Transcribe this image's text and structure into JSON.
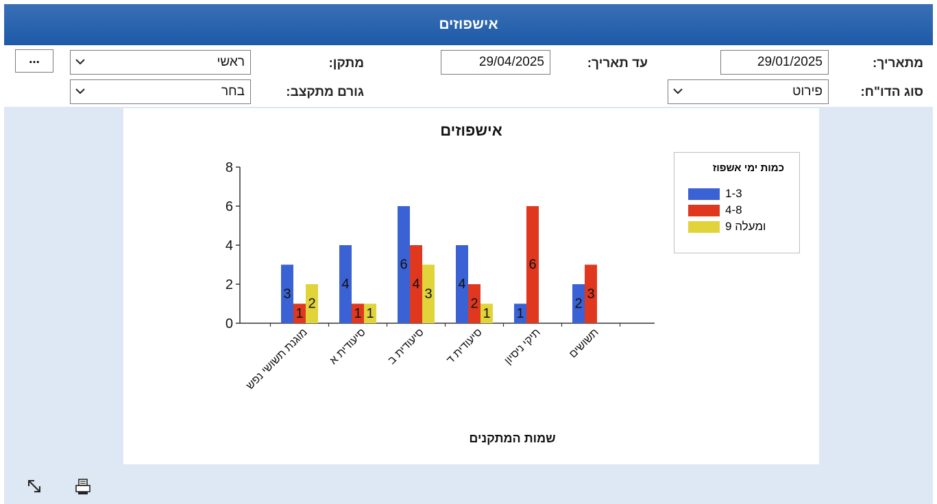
{
  "header": {
    "title": "אישפוזים"
  },
  "filters": {
    "from_date_label": "מתאריך:",
    "from_date_value": "29/01/2025",
    "to_date_label": "עד תאריך:",
    "to_date_value": "29/04/2025",
    "facility_label": "מתקן:",
    "facility_value": "ראשי",
    "report_type_label": "סוג הדו\"ח:",
    "report_type_value": "פירוט",
    "referral_label": "גורם מתקצב:",
    "referral_value": "בחר",
    "more_button": "..."
  },
  "icons": {
    "expand": "expand-diagonal-arrow-icon",
    "print": "printer-icon",
    "chevron": "chevron-down-icon"
  },
  "chart_data": {
    "type": "bar",
    "title": "אישפוזים",
    "xlabel": "שמות המתקנים",
    "ylabel": "",
    "ylim": [
      0,
      8
    ],
    "yticks": [
      0,
      2,
      4,
      6,
      8
    ],
    "categories": [
      "מוגנת תשושי נפש",
      "סיעודית א",
      "סיעודית ב",
      "סיעודית ד",
      "תיקי ניסיון",
      "תשושים"
    ],
    "legend_title": "כמות ימי אשפוז",
    "legend_position": "right",
    "grid": false,
    "series": [
      {
        "name": "1-3",
        "color": "#3a62d4",
        "values": [
          3,
          4,
          6,
          4,
          1,
          2
        ]
      },
      {
        "name": "4-8",
        "color": "#e0381f",
        "values": [
          1,
          1,
          4,
          2,
          6,
          3
        ]
      },
      {
        "name": "ומעלה 9",
        "color": "#e0d43a",
        "values": [
          2,
          1,
          3,
          1,
          null,
          null
        ]
      }
    ]
  }
}
